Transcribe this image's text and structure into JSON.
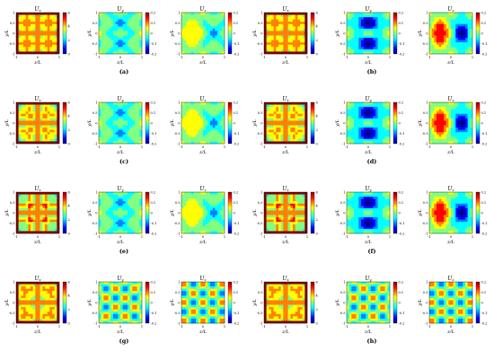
{
  "chart_data": {
    "type": "heatmap",
    "components": [
      "U_x",
      "U_y",
      "U_z"
    ],
    "panel_titles": [
      "U",
      "U",
      "U",
      "U",
      "U",
      "U"
    ],
    "title_subscripts": [
      "x",
      "y",
      "z",
      "x",
      "y",
      "z"
    ],
    "xlabel": "z/L",
    "ylabel": "y/L",
    "x_ticks": [
      "-1",
      "0",
      "1"
    ],
    "y_ticks": [
      "1",
      "0.5",
      "0",
      "-0.5",
      "-1"
    ],
    "colorbar_ticks": {
      "U_x": [
        "6",
        "4",
        "2",
        "0"
      ],
      "U_yz": [
        "0.2",
        "0.1",
        "0",
        "-0.1",
        "-0.2"
      ]
    },
    "colormap": [
      "#00008f",
      "#0000ff",
      "#0080ff",
      "#00ffff",
      "#80ff80",
      "#ffff00",
      "#ff8000",
      "#ff0000",
      "#800000"
    ],
    "rows": [
      {
        "captions": [
          "(a)",
          "(b)"
        ],
        "pattern": "crosses-rounded"
      },
      {
        "captions": [
          "(c)",
          "(d)"
        ],
        "pattern": "crosses-dense"
      },
      {
        "captions": [
          "(e)",
          "(f)"
        ],
        "pattern": "crosses-sharp"
      },
      {
        "captions": [
          "(g)",
          "(h)"
        ],
        "pattern": "crosses-spotted"
      }
    ]
  }
}
